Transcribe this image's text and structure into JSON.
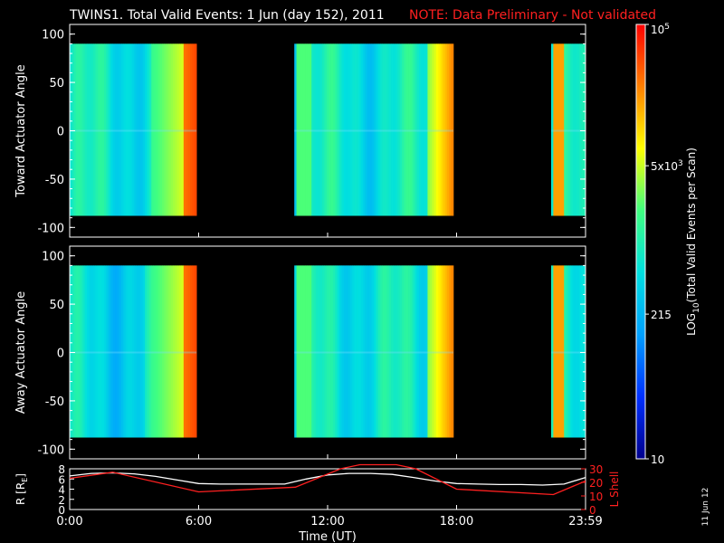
{
  "chart_data": {
    "type": "heatmap",
    "title": "TWINS1. Total Valid Events:  1 Jun (day 152), 2011",
    "note": "NOTE: Data Preliminary - Not validated",
    "panels": [
      {
        "ylabel": "Toward Actuator Angle",
        "ylim": [
          -110,
          110
        ],
        "yticks": [
          "100",
          "50",
          "0",
          "-50",
          "-100"
        ],
        "angle_range": [
          -88,
          90
        ]
      },
      {
        "ylabel": "Away Actuator Angle",
        "ylim": [
          -110,
          110
        ],
        "yticks": [
          "100",
          "50",
          "0",
          "-50",
          "-100"
        ],
        "angle_range": [
          -88,
          90
        ]
      }
    ],
    "data_intervals_hours": [
      [
        0.0,
        5.9
      ],
      [
        10.45,
        17.85
      ],
      [
        22.4,
        24.0
      ]
    ],
    "colorbar": {
      "label": "LOG10(Total Valid Events per Scan)",
      "label_main": "LOG",
      "label_sub": "10",
      "label_rest": "(Total Valid Events per Scan)",
      "min": 10,
      "max": 100000,
      "ticks": [
        {
          "text": "10",
          "value": 10
        },
        {
          "text": "215",
          "value": 215
        },
        {
          "text": "5x10",
          "sup": "3",
          "value": 5000
        },
        {
          "text": "10",
          "sup": "5",
          "value": 100000
        }
      ],
      "colors": [
        "#00008c",
        "#0030ff",
        "#00a0ff",
        "#00e0e0",
        "#40ff80",
        "#ffff00",
        "#ff8000",
        "#ff0000"
      ]
    },
    "orbit": {
      "xlabel": "Time (UT)",
      "ylabel_left": "R [RE]",
      "ylabel_left_main": "R [R",
      "ylabel_left_sub": "E",
      "ylabel_left_end": "]",
      "ylabel_right": "L Shell",
      "left_range": [
        0,
        8
      ],
      "right_range": [
        0,
        30
      ],
      "left_ticks": [
        "8",
        "6",
        "4",
        "2",
        "0"
      ],
      "right_ticks": [
        "30",
        "20",
        "10",
        "0"
      ],
      "xticks": [
        "0:00",
        "6:00",
        "12:00",
        "18:00",
        "23:59"
      ],
      "r_series": {
        "hours": [
          0,
          1,
          2,
          3,
          4,
          5,
          6,
          7,
          8,
          9,
          10,
          11,
          12,
          13,
          14,
          15,
          16,
          17,
          18,
          19,
          20,
          21,
          22,
          23,
          24
        ],
        "values": [
          6.6,
          7.1,
          7.2,
          7.0,
          6.5,
          5.8,
          5.1,
          5.0,
          5.0,
          5.0,
          5.0,
          6.0,
          6.8,
          7.1,
          7.1,
          6.9,
          6.3,
          5.6,
          5.1,
          5.0,
          4.9,
          4.9,
          4.8,
          5.0,
          6.3
        ]
      },
      "l_series": {
        "hours": [
          0,
          2,
          6,
          10.5,
          12.6,
          13.5,
          15.2,
          16.1,
          18,
          22.5,
          24
        ],
        "values": [
          23,
          27.5,
          13,
          16.5,
          30,
          33,
          33,
          30,
          15,
          11,
          21
        ]
      }
    },
    "date_stamp": "11 Jun 12"
  }
}
